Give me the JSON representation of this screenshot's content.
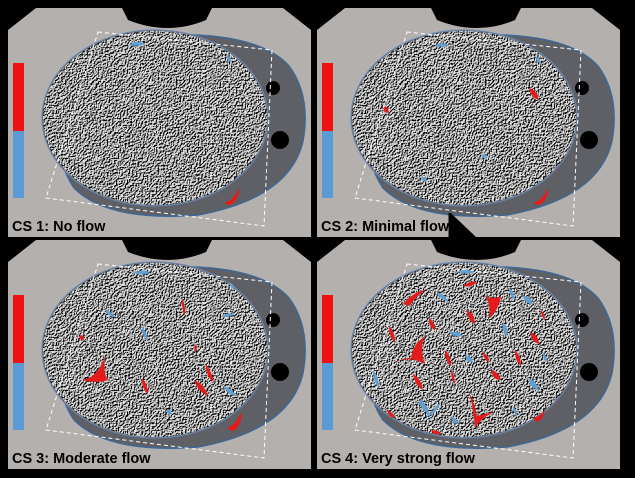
{
  "panels": [
    {
      "id": "cs1",
      "caption": "CS 1: No flow",
      "flow_level": "none"
    },
    {
      "id": "cs2",
      "caption": "CS 2: Minimal flow",
      "flow_level": "minimal"
    },
    {
      "id": "cs3",
      "caption": "CS 3: Moderate flow",
      "flow_level": "moderate"
    },
    {
      "id": "cs4",
      "caption": "CS 4: Very strong flow",
      "flow_level": "very-strong"
    }
  ],
  "colors": {
    "tissue_background": "#b4b0ad",
    "vessel_shell": "#5f6066",
    "color_scale_positive": "#ee1111",
    "color_scale_negative": "#5b9bd5",
    "flow_red": "#e31b1b",
    "flow_blue": "#5f9fd2"
  }
}
